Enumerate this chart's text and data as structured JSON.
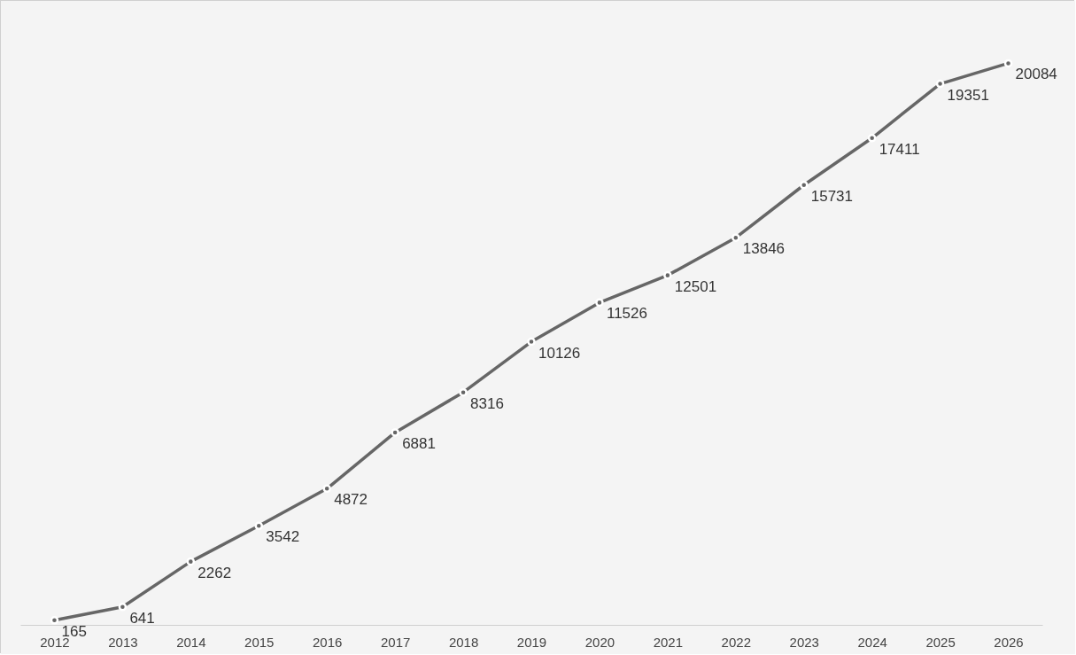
{
  "chart_data": {
    "type": "line",
    "categories": [
      "2012",
      "2013",
      "2014",
      "2015",
      "2016",
      "2017",
      "2018",
      "2019",
      "2020",
      "2021",
      "2022",
      "2023",
      "2024",
      "2025",
      "2026"
    ],
    "series": [
      {
        "color": "#666666",
        "values": [
          165,
          641,
          2262,
          3542,
          4872,
          6881,
          8316,
          10126,
          11526,
          12501,
          13846,
          15731,
          17411,
          19351,
          20084
        ]
      }
    ],
    "data_labels": true,
    "marker": "circle"
  }
}
